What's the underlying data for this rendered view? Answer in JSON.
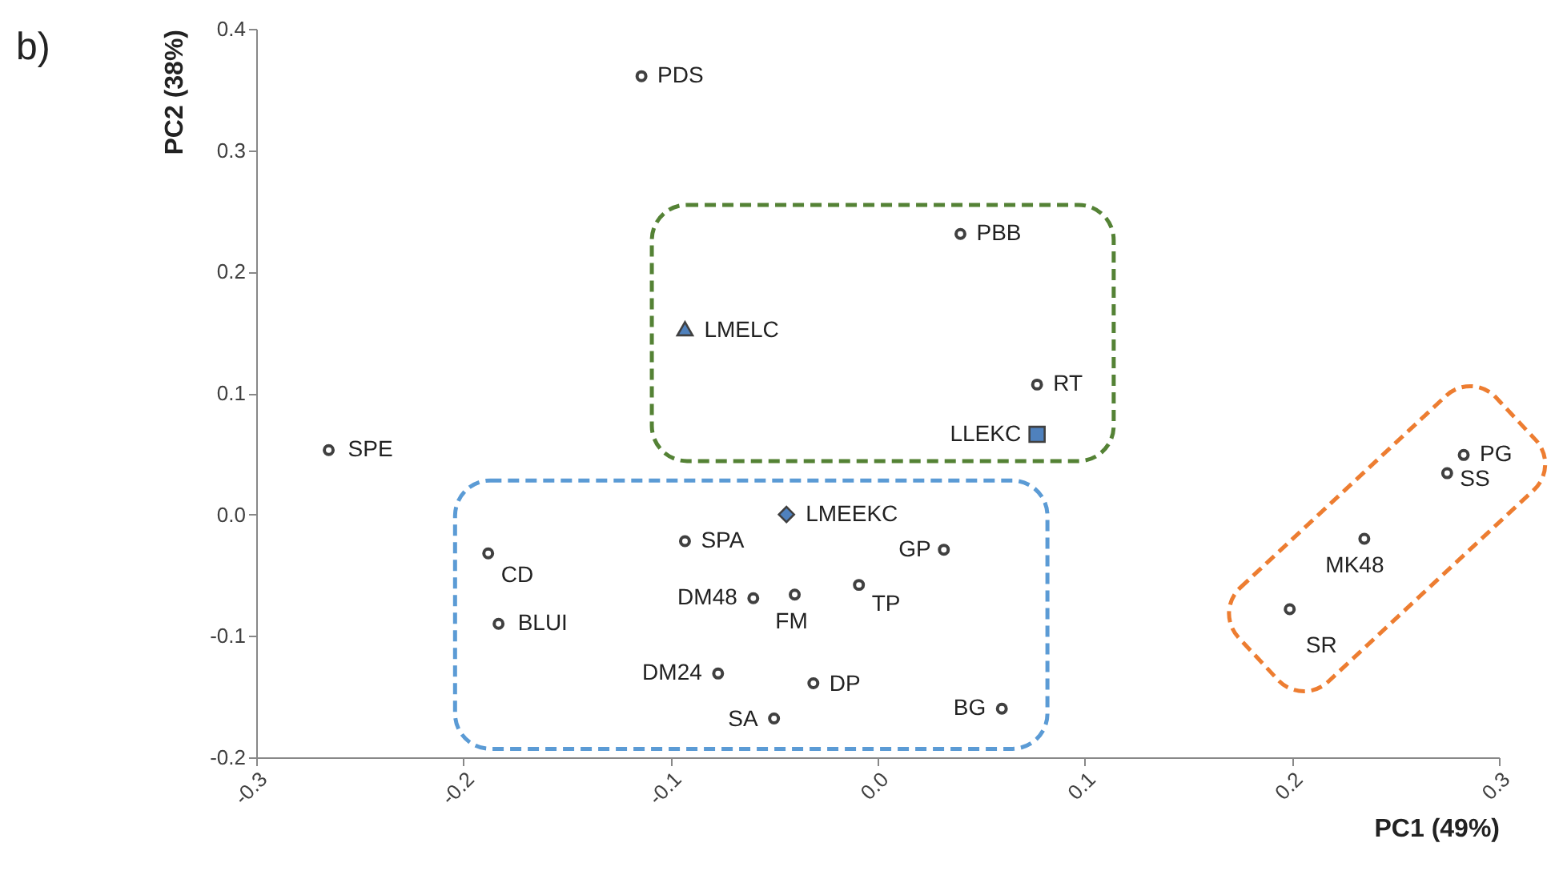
{
  "chart_data": {
    "type": "scatter",
    "title": "b)",
    "xlabel": "PC1 (49%)",
    "ylabel": "PC2 (38%)",
    "xlim": [
      -0.3,
      0.3
    ],
    "xticks": [
      {
        "value": -0.3,
        "label": "-0.3"
      },
      {
        "value": -0.2,
        "label": "-0.2"
      },
      {
        "value": -0.1,
        "label": "-0.1"
      },
      {
        "value": 0,
        "label": "0.0"
      },
      {
        "value": 0.1,
        "label": "0.1"
      },
      {
        "value": 0.2,
        "label": "0.2"
      },
      {
        "value": 0.3,
        "label": "0.3"
      }
    ],
    "ylim": [
      -0.2,
      0.4
    ],
    "yticks": [
      {
        "value": -0.2,
        "label": "-0.2"
      },
      {
        "value": -0.1,
        "label": "-0.1"
      },
      {
        "value": 0,
        "label": "0.0"
      },
      {
        "value": 0.1,
        "label": "0.1"
      },
      {
        "value": 0.2,
        "label": "0.2"
      },
      {
        "value": 0.3,
        "label": "0.3"
      },
      {
        "value": 0.4,
        "label": "0.4"
      }
    ],
    "grid": false,
    "series": [
      {
        "color": "#404040",
        "marker": "circle",
        "x": [
          -0.114,
          0.04,
          0.077,
          -0.265,
          0.283,
          0.275,
          0.235,
          -0.093,
          0.032,
          -0.188,
          -0.009,
          -0.04,
          -0.06,
          0.199,
          -0.183,
          -0.077,
          -0.031,
          0.06,
          -0.05
        ],
        "values": [
          0.361,
          0.231,
          0.107,
          0.053,
          0.049,
          0.034,
          -0.02,
          -0.022,
          -0.029,
          -0.032,
          -0.058,
          -0.066,
          -0.069,
          -0.078,
          -0.09,
          -0.131,
          -0.139,
          -0.16,
          -0.168
        ]
      },
      {
        "color": "#4f81bd",
        "marker": "triangle",
        "x": [
          -0.093
        ],
        "values": [
          0.153
        ]
      },
      {
        "color": "#4f81bd",
        "marker": "square",
        "x": [
          0.077
        ],
        "values": [
          0.066
        ]
      },
      {
        "color": "#4f81bd",
        "marker": "diamond",
        "x": [
          -0.044
        ],
        "values": [
          0.0
        ]
      }
    ],
    "annotations": [
      {
        "text": "PDS",
        "x": -0.114,
        "y": 0.361
      },
      {
        "text": "PBB",
        "x": 0.04,
        "y": 0.231
      },
      {
        "text": "RT",
        "x": 0.077,
        "y": 0.107
      },
      {
        "text": "SPE",
        "x": -0.265,
        "y": 0.053
      },
      {
        "text": "PG",
        "x": 0.283,
        "y": 0.049
      },
      {
        "text": "SS",
        "x": 0.275,
        "y": 0.034
      },
      {
        "text": "MK48",
        "x": 0.235,
        "y": -0.02
      },
      {
        "text": "SPA",
        "x": -0.093,
        "y": -0.022
      },
      {
        "text": "GP",
        "x": 0.032,
        "y": -0.029
      },
      {
        "text": "CD",
        "x": -0.188,
        "y": -0.032
      },
      {
        "text": "TP",
        "x": -0.009,
        "y": -0.058
      },
      {
        "text": "FM",
        "x": -0.04,
        "y": -0.066
      },
      {
        "text": "DM48",
        "x": -0.06,
        "y": -0.069
      },
      {
        "text": "SR",
        "x": 0.199,
        "y": -0.078
      },
      {
        "text": "BLUI",
        "x": -0.183,
        "y": -0.09
      },
      {
        "text": "DM24",
        "x": -0.077,
        "y": -0.131
      },
      {
        "text": "DP",
        "x": -0.031,
        "y": -0.139
      },
      {
        "text": "BG",
        "x": 0.06,
        "y": -0.16
      },
      {
        "text": "SA",
        "x": -0.05,
        "y": -0.168
      },
      {
        "text": "LMELC",
        "x": -0.093,
        "y": 0.153
      },
      {
        "text": "LLEKC",
        "x": 0.077,
        "y": 0.066
      },
      {
        "text": "LMEEKC",
        "x": -0.044,
        "y": 0.0
      }
    ]
  }
}
